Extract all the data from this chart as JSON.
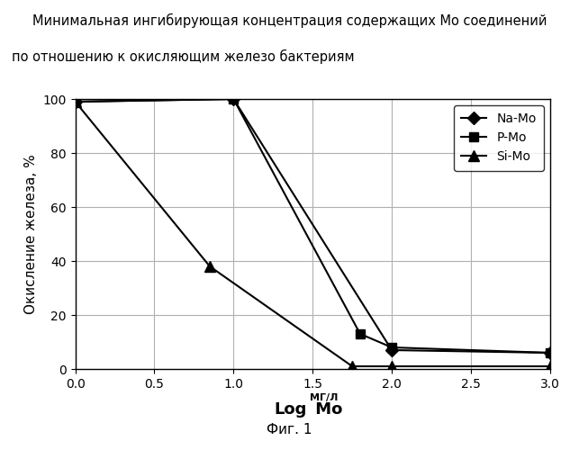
{
  "title_line1": "Минимальная ингибирующая концентрация содержащих Mo соединений",
  "title_line2": "по отношению к окисляющим железо бактериям",
  "ylabel": "Окисление железа, %",
  "caption": "Фиг. 1",
  "xlim": [
    0,
    3
  ],
  "ylim": [
    0,
    100
  ],
  "xticks": [
    0,
    0.5,
    1,
    1.5,
    2,
    2.5,
    3
  ],
  "yticks": [
    0,
    20,
    40,
    60,
    80,
    100
  ],
  "series": [
    {
      "label": "Na-Mo",
      "x": [
        0,
        1,
        2,
        3
      ],
      "y": [
        99,
        100,
        7,
        6
      ],
      "marker": "D",
      "color": "#000000",
      "markersize": 7
    },
    {
      "label": "P-Mo",
      "x": [
        0,
        1,
        1.8,
        2,
        3
      ],
      "y": [
        99,
        100,
        13,
        8,
        6
      ],
      "marker": "s",
      "color": "#000000",
      "markersize": 7
    },
    {
      "label": "Si-Mo",
      "x": [
        0,
        0.85,
        1.75,
        2,
        3
      ],
      "y": [
        99,
        38,
        1,
        1,
        1
      ],
      "marker": "^",
      "color": "#000000",
      "markersize": 8
    }
  ],
  "background_color": "#ffffff",
  "grid_color": "#b0b0b0",
  "title_fontsize": 10.5,
  "label_fontsize": 11,
  "tick_fontsize": 10
}
